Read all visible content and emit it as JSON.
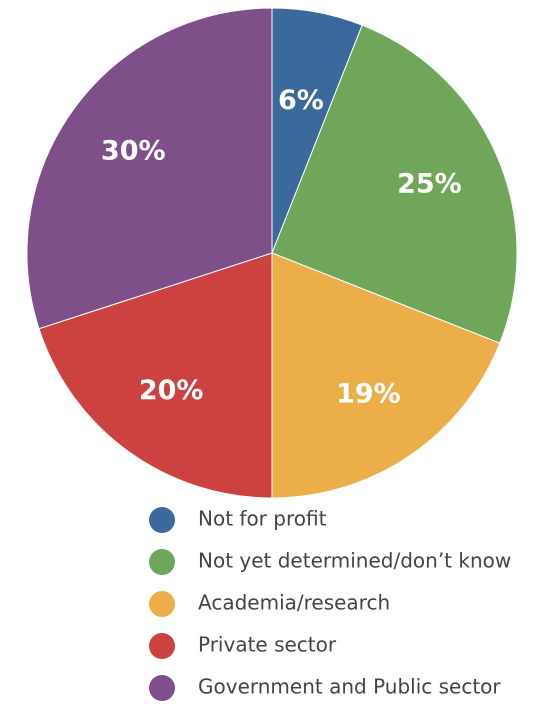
{
  "chart_data": {
    "type": "pie",
    "categories": [
      "Not for profit",
      "Not yet determined/don’t know",
      "Academia/research",
      "Private sector",
      "Government and Public sector"
    ],
    "values": [
      6,
      25,
      19,
      20,
      30
    ],
    "value_labels": [
      "6%",
      "25%",
      "19%",
      "20%",
      "30%"
    ],
    "colors": [
      "#3b699c",
      "#6fa65a",
      "#ebae49",
      "#cb4240",
      "#7f4f8a"
    ]
  }
}
